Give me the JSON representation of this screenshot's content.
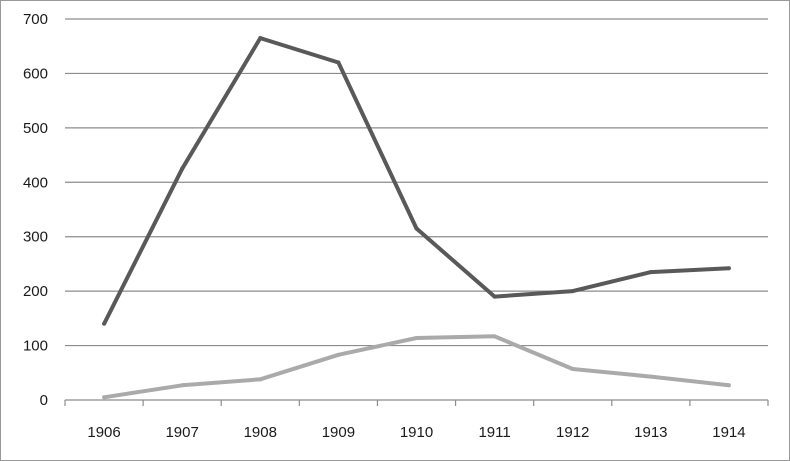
{
  "chart_data": {
    "type": "line",
    "title": "",
    "xlabel": "",
    "ylabel": "",
    "categories": [
      "1906",
      "1907",
      "1908",
      "1909",
      "1910",
      "1911",
      "1912",
      "1913",
      "1914"
    ],
    "ylim": [
      0,
      700
    ],
    "yticks": [
      0,
      100,
      200,
      300,
      400,
      500,
      600,
      700
    ],
    "y_tick_labels": [
      "0",
      "100",
      "200",
      "300",
      "400",
      "500",
      "600",
      "700"
    ],
    "grid": "horizontal",
    "legend": "none",
    "series": [
      {
        "values": [
          140,
          425,
          665,
          620,
          315,
          190,
          200,
          235,
          242
        ],
        "color": "#595959"
      },
      {
        "values": [
          5,
          27,
          38,
          83,
          114,
          117,
          57,
          43,
          27
        ],
        "color": "#aaaaaa"
      }
    ]
  }
}
